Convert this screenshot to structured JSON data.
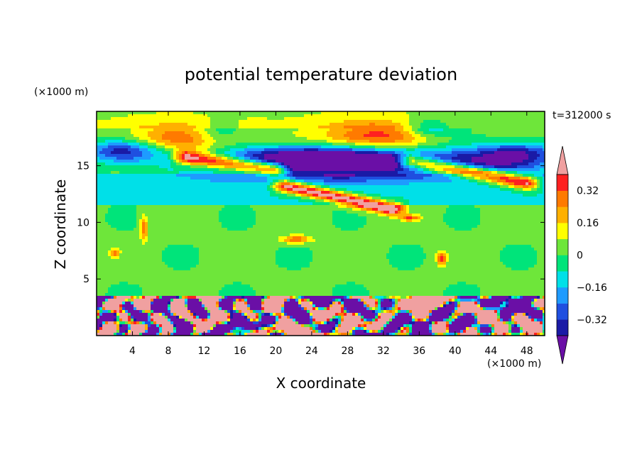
{
  "chart_data": {
    "type": "heatmap",
    "title": "potential temperature deviation",
    "xlabel": "X coordinate",
    "ylabel": "Z coordinate",
    "x_unit": "(×1000 m)",
    "y_unit": "(×1000 m)",
    "time_label": "t=312000 s",
    "xlim": [
      0,
      50
    ],
    "ylim": [
      0,
      19.8
    ],
    "x_ticks": [
      4,
      8,
      12,
      16,
      20,
      24,
      28,
      32,
      36,
      40,
      44,
      48
    ],
    "y_ticks": [
      5,
      10,
      15
    ],
    "colorbar": {
      "levels": [
        -0.48,
        -0.4,
        -0.32,
        -0.24,
        -0.16,
        -0.08,
        0,
        0.08,
        0.16,
        0.24,
        0.32,
        0.4
      ],
      "tick_labels": [
        "0.32",
        "0.16",
        "0",
        "−0.16",
        "−0.32"
      ],
      "tick_values": [
        0.32,
        0.16,
        0,
        -0.16,
        -0.32
      ],
      "colors": [
        "#6a0fa6",
        "#1a1aa6",
        "#1f4fe0",
        "#1e9bff",
        "#00e0e8",
        "#00e47a",
        "#6ee63a",
        "#ffff00",
        "#ffb000",
        "#ff7a00",
        "#ff2020",
        "#f0a0a0"
      ]
    }
  }
}
